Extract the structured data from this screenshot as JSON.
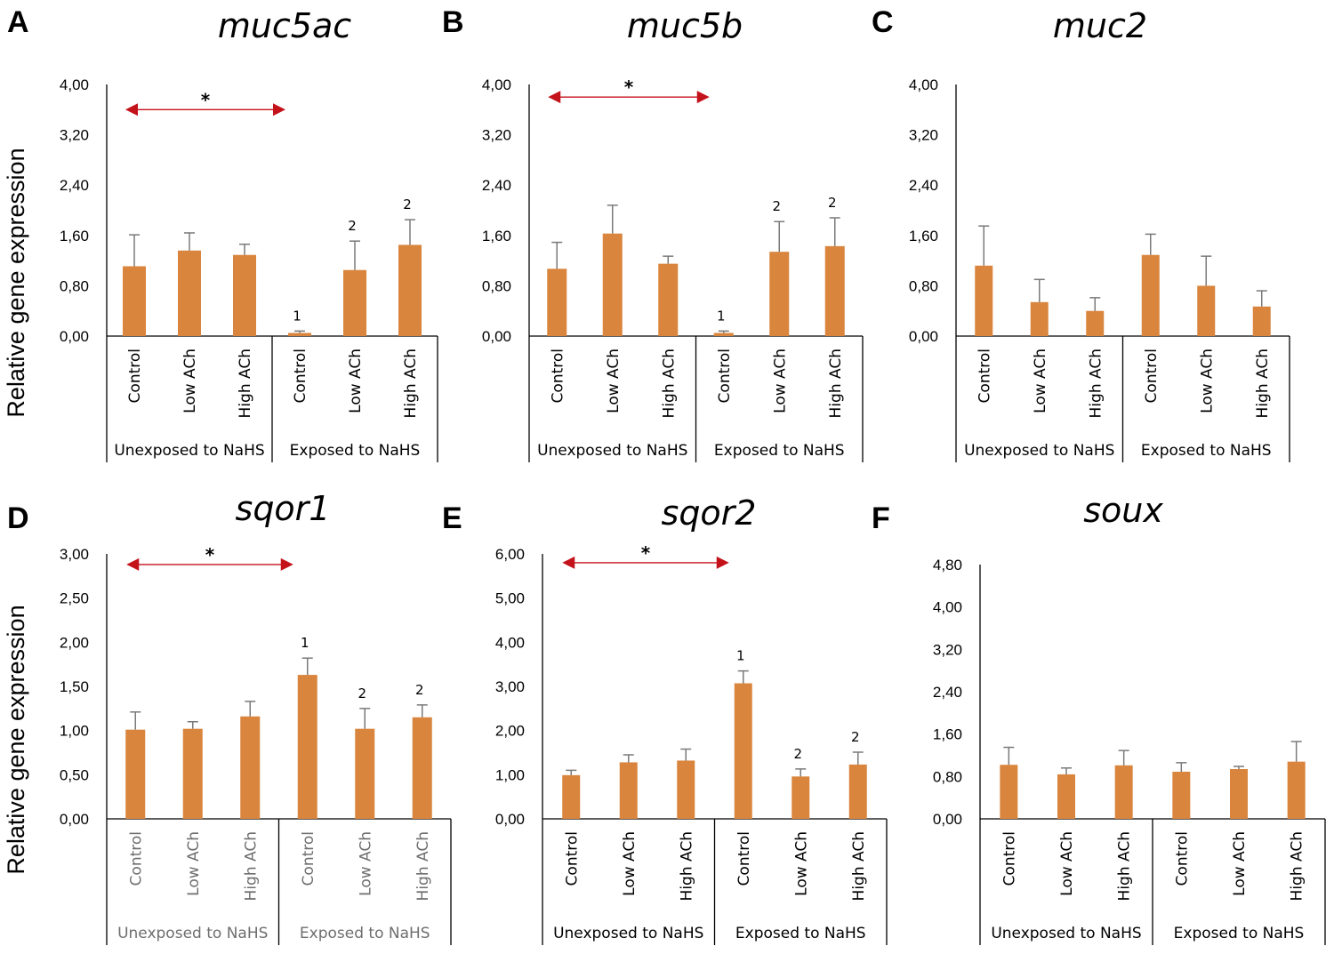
{
  "y_axis_label": "Relative gene expression",
  "colors": {
    "bar": "#d9853d",
    "arrow": "#c4121b",
    "error": "#7a7a7a"
  },
  "chart_data": [
    {
      "type": "bar",
      "letter": "A",
      "title": "muc5ac",
      "ylim": [
        0,
        4
      ],
      "yticks": [
        "0,00",
        "0,80",
        "1,60",
        "2,40",
        "3,20",
        "4,00"
      ],
      "categories": [
        "Control",
        "Low ACh",
        "High ACh",
        "Control",
        "Low ACh",
        "High ACh"
      ],
      "groups": [
        "Unexposed to NaHS",
        "Exposed to NaHS"
      ],
      "values": [
        1.11,
        1.36,
        1.29,
        0.05,
        1.05,
        1.45
      ],
      "errors": [
        0.5,
        0.28,
        0.17,
        0.03,
        0.46,
        0.4
      ],
      "annotations": [
        "",
        "",
        "",
        "1",
        "2",
        "2"
      ],
      "significance": {
        "from": 0,
        "to": 3,
        "label": "*",
        "level": 3.6
      },
      "grey_labels": false
    },
    {
      "type": "bar",
      "letter": "B",
      "title": "muc5b",
      "ylim": [
        0,
        4
      ],
      "yticks": [
        "0,00",
        "0,80",
        "1,60",
        "2,40",
        "3,20",
        "4,00"
      ],
      "categories": [
        "Control",
        "Low ACh",
        "High ACh",
        "Control",
        "Low ACh",
        "High ACh"
      ],
      "groups": [
        "Unexposed to NaHS",
        "Exposed to NaHS"
      ],
      "values": [
        1.07,
        1.63,
        1.15,
        0.05,
        1.34,
        1.43
      ],
      "errors": [
        0.42,
        0.45,
        0.12,
        0.03,
        0.48,
        0.45
      ],
      "annotations": [
        "",
        "",
        "",
        "1",
        "2",
        "2"
      ],
      "significance": {
        "from": 0,
        "to": 3,
        "label": "*",
        "level": 3.8
      },
      "grey_labels": false
    },
    {
      "type": "bar",
      "letter": "C",
      "title": "muc2",
      "ylim": [
        0,
        4
      ],
      "yticks": [
        "0,00",
        "0,80",
        "1,60",
        "2,40",
        "3,20",
        "4,00"
      ],
      "categories": [
        "Control",
        "Low ACh",
        "High ACh",
        "Control",
        "Low ACh",
        "High ACh"
      ],
      "groups": [
        "Unexposed to NaHS",
        "Exposed to NaHS"
      ],
      "values": [
        1.12,
        0.54,
        0.4,
        1.29,
        0.8,
        0.47
      ],
      "errors": [
        0.63,
        0.36,
        0.21,
        0.33,
        0.47,
        0.25
      ],
      "annotations": [
        "",
        "",
        "",
        "",
        "",
        ""
      ],
      "significance": null,
      "grey_labels": false
    },
    {
      "type": "bar",
      "letter": "D",
      "title": "sqor1",
      "ylim": [
        0,
        3
      ],
      "yticks": [
        "0,00",
        "0,50",
        "1,00",
        "1,50",
        "2,00",
        "2,50",
        "3,00"
      ],
      "categories": [
        "Control",
        "Low ACh",
        "High ACh",
        "Control",
        "Low ACh",
        "High ACh"
      ],
      "groups": [
        "Unexposed to NaHS",
        "Exposed to NaHS"
      ],
      "values": [
        1.01,
        1.02,
        1.16,
        1.63,
        1.02,
        1.15
      ],
      "errors": [
        0.2,
        0.08,
        0.17,
        0.19,
        0.23,
        0.14
      ],
      "annotations": [
        "",
        "",
        "",
        "1",
        "2",
        "2"
      ],
      "significance": {
        "from": 0,
        "to": 3,
        "label": "*",
        "level": 2.88
      },
      "grey_labels": true
    },
    {
      "type": "bar",
      "letter": "E",
      "title": "sqor2",
      "ylim": [
        0,
        6
      ],
      "yticks": [
        "0,00",
        "1,00",
        "2,00",
        "3,00",
        "4,00",
        "5,00",
        "6,00"
      ],
      "categories": [
        "Control",
        "Low ACh",
        "High ACh",
        "Control",
        "Low ACh",
        "High ACh"
      ],
      "groups": [
        "Unexposed to NaHS",
        "Exposed to NaHS"
      ],
      "values": [
        0.99,
        1.28,
        1.32,
        3.07,
        0.96,
        1.23
      ],
      "errors": [
        0.11,
        0.17,
        0.26,
        0.28,
        0.17,
        0.28
      ],
      "annotations": [
        "",
        "",
        "",
        "1",
        "2",
        "2"
      ],
      "significance": {
        "from": 0,
        "to": 3,
        "label": "*",
        "level": 5.8
      },
      "grey_labels": false
    },
    {
      "type": "bar",
      "letter": "F",
      "title": "soux",
      "ylim": [
        0,
        4.8
      ],
      "yticks": [
        "0,00",
        "0,80",
        "1,60",
        "2,40",
        "3,20",
        "4,00",
        "4,80"
      ],
      "categories": [
        "Control",
        "Low ACh",
        "High ACh",
        "Control",
        "Low ACh",
        "High ACh"
      ],
      "groups": [
        "Unexposed to NaHS",
        "Exposed to NaHS"
      ],
      "values": [
        1.02,
        0.84,
        1.01,
        0.89,
        0.94,
        1.08
      ],
      "errors": [
        0.33,
        0.12,
        0.28,
        0.17,
        0.05,
        0.38
      ],
      "annotations": [
        "",
        "",
        "",
        "",
        "",
        ""
      ],
      "significance": null,
      "grey_labels": false
    }
  ]
}
